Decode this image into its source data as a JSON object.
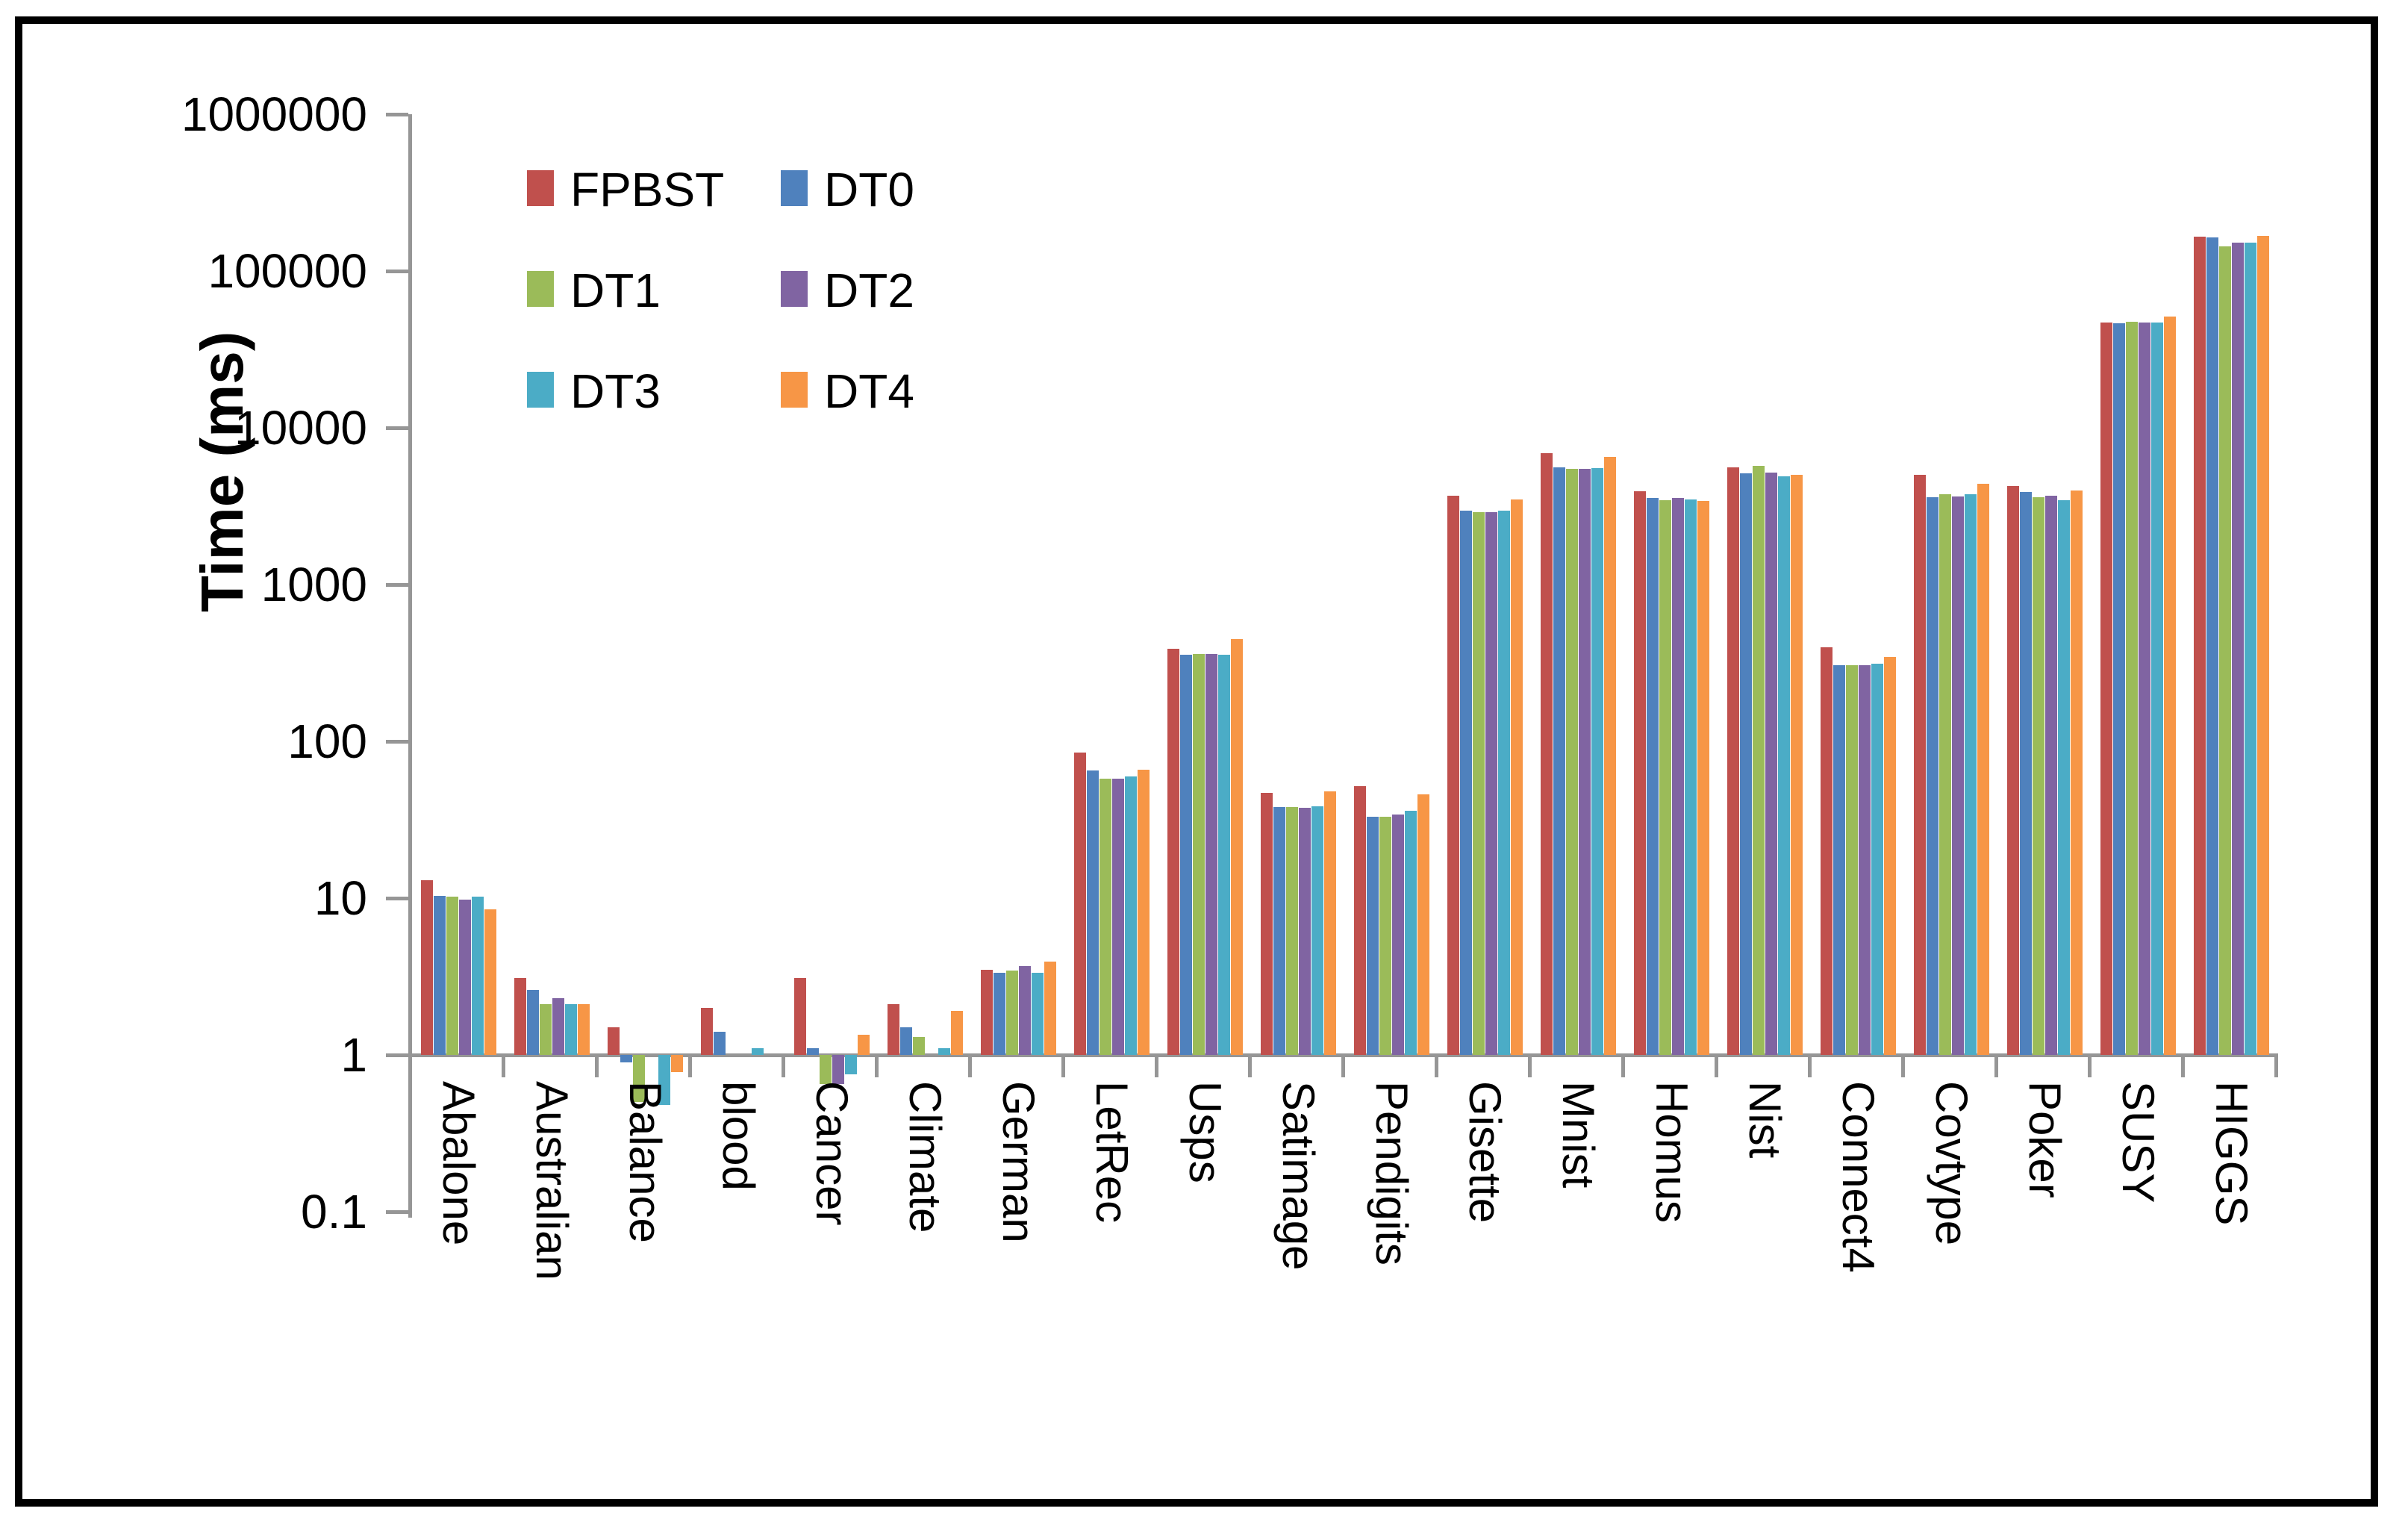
{
  "chart_data": {
    "type": "bar",
    "title": "",
    "xlabel": "",
    "ylabel": "Time (ms)",
    "y_scale": "log",
    "ylim": [
      0.1,
      1000000
    ],
    "grid": false,
    "bar_baseline": 1,
    "legend_position": "top-left-inside",
    "y_ticks": [
      {
        "value": 1000000,
        "label": "1000000"
      },
      {
        "value": 100000,
        "label": "100000"
      },
      {
        "value": 10000,
        "label": "10000"
      },
      {
        "value": 1000,
        "label": "1000"
      },
      {
        "value": 100,
        "label": "100"
      },
      {
        "value": 10,
        "label": "10"
      },
      {
        "value": 1,
        "label": "1"
      },
      {
        "value": 0.1,
        "label": "0.1"
      }
    ],
    "categories": [
      "Abalone",
      "Australian",
      "Balance",
      "blood",
      "Cancer",
      "Climate",
      "German",
      "LetRec",
      "Usps",
      "Satimage",
      "Pendigits",
      "Gisette",
      "Mnist",
      "Homus",
      "Nist",
      "Connect4",
      "Covtype",
      "Poker",
      "SUSY",
      "HIGGS"
    ],
    "series": [
      {
        "name": "FPBST",
        "color": "#C0504D",
        "values": [
          13,
          3.1,
          1.5,
          2.0,
          3.1,
          2.1,
          3.5,
          85,
          390,
          47,
          52,
          3700,
          6900,
          3950,
          5600,
          400,
          5000,
          4250,
          47000,
          165000
        ]
      },
      {
        "name": "DT0",
        "color": "#4F81BD",
        "values": [
          10.3,
          2.6,
          0.9,
          1.4,
          1.1,
          1.5,
          3.35,
          65,
          355,
          38,
          33,
          2950,
          5600,
          3550,
          5150,
          305,
          3600,
          3900,
          46500,
          163000
        ]
      },
      {
        "name": "DT1",
        "color": "#9BBB59",
        "values": [
          10.2,
          2.1,
          0.5,
          1.0,
          0.65,
          1.3,
          3.45,
          58,
          360,
          38,
          33,
          2900,
          5500,
          3450,
          5700,
          307,
          3750,
          3600,
          47500,
          144000
        ]
      },
      {
        "name": "DT2",
        "color": "#8064A2",
        "values": [
          9.8,
          2.3,
          1.0,
          1.0,
          0.65,
          1.0,
          3.7,
          58,
          360,
          37.5,
          34,
          2900,
          5450,
          3550,
          5200,
          305,
          3650,
          3700,
          46800,
          152000
        ]
      },
      {
        "name": "DT3",
        "color": "#4BACC6",
        "values": [
          10.2,
          2.1,
          0.48,
          1.1,
          0.75,
          1.1,
          3.35,
          60,
          355,
          38.5,
          36,
          2950,
          5550,
          3500,
          4900,
          312,
          3750,
          3450,
          47000,
          151000
        ]
      },
      {
        "name": "DT4",
        "color": "#F79646",
        "values": [
          8.5,
          2.1,
          0.78,
          1.0,
          1.35,
          1.9,
          3.95,
          66,
          450,
          48,
          46,
          3500,
          6500,
          3400,
          5000,
          345,
          4400,
          4000,
          51000,
          167000
        ]
      }
    ]
  },
  "axis_color": "#969696"
}
